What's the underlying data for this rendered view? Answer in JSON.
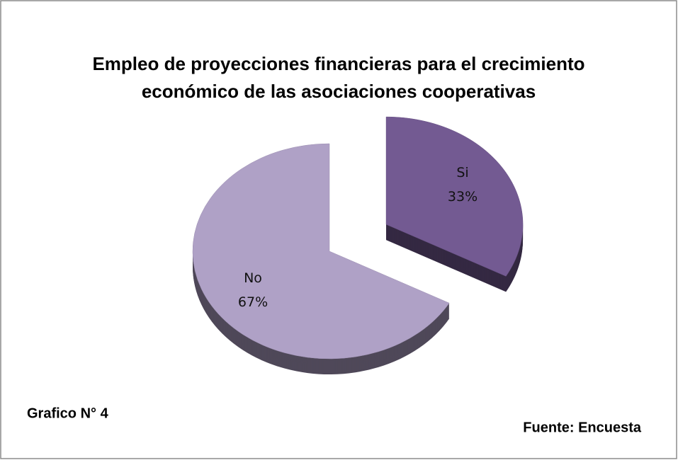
{
  "chart_data": {
    "type": "pie",
    "title": [
      "Empleo de proyecciones financieras para el crecimiento",
      "económico de las asociaciones cooperativas"
    ],
    "categories": [
      "Si",
      "No"
    ],
    "values": [
      33,
      67
    ],
    "value_labels": [
      "33%",
      "67%"
    ],
    "colors": [
      "#735a92",
      "#afa1c6"
    ],
    "annotations": [
      "Grafico N° 4",
      "Fuente: Encuesta"
    ]
  }
}
